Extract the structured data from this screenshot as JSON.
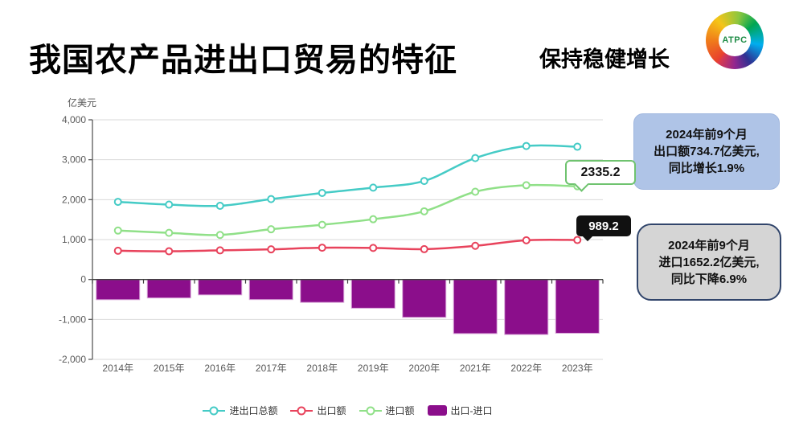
{
  "header": {
    "title": "我国农产品进出口贸易的特征",
    "subtitle": "保持稳健增长",
    "logo_text": "ATPC"
  },
  "chart_data": {
    "type": "line+bar",
    "unit_label": "亿美元",
    "categories": [
      "2014年",
      "2015年",
      "2016年",
      "2017年",
      "2018年",
      "2019年",
      "2020年",
      "2021年",
      "2022年",
      "2023年"
    ],
    "series": [
      {
        "name": "进出口总额",
        "type": "line",
        "color": "#45CBC6",
        "values": [
          1945.0,
          1875.6,
          1845.6,
          2013.9,
          2168.1,
          2300.7,
          2468.3,
          3041.7,
          3343.2,
          3324.4
        ]
      },
      {
        "name": "出口额",
        "type": "line",
        "color": "#E8435C",
        "values": [
          719.6,
          706.8,
          729.9,
          755.3,
          797.1,
          791.0,
          760.3,
          843.5,
          982.6,
          989.2
        ]
      },
      {
        "name": "进口额",
        "type": "line",
        "color": "#90E088",
        "values": [
          1225.4,
          1168.8,
          1115.7,
          1258.6,
          1371.0,
          1509.7,
          1708.0,
          2198.2,
          2360.6,
          2335.2
        ]
      },
      {
        "name": "出口-进口",
        "type": "bar",
        "color": "#8B0E8B",
        "values": [
          -505.8,
          -462.0,
          -385.8,
          -503.3,
          -573.9,
          -718.7,
          -947.7,
          -1354.7,
          -1378.0,
          -1346.0
        ]
      }
    ],
    "ylim": [
      -2000,
      4000
    ],
    "ytick_step": 1000,
    "grid": true,
    "legend_position": "bottom"
  },
  "annotations": {
    "import_callout": "2335.2",
    "export_callout": "989.2",
    "export_note_lines": [
      "2024年前9个月",
      "出口额734.7亿美元,",
      "同比增长1.9%"
    ],
    "import_note_lines": [
      "2024年前9个月",
      "进口1652.2亿美元,",
      "同比下降6.9%"
    ]
  },
  "colors": {
    "note_blue_bg": "#AFC4E7",
    "note_gray_bg": "#D5D5D5",
    "note_gray_border": "#31456B",
    "callout_green_border": "#6FC36F",
    "callout_black_bg": "#111111",
    "axis_line": "#595959",
    "zero_axis_line": "#404040",
    "grid_line": "#D9D9D9",
    "tick_text": "#595959",
    "bar_edge": "#D9A6D9"
  }
}
